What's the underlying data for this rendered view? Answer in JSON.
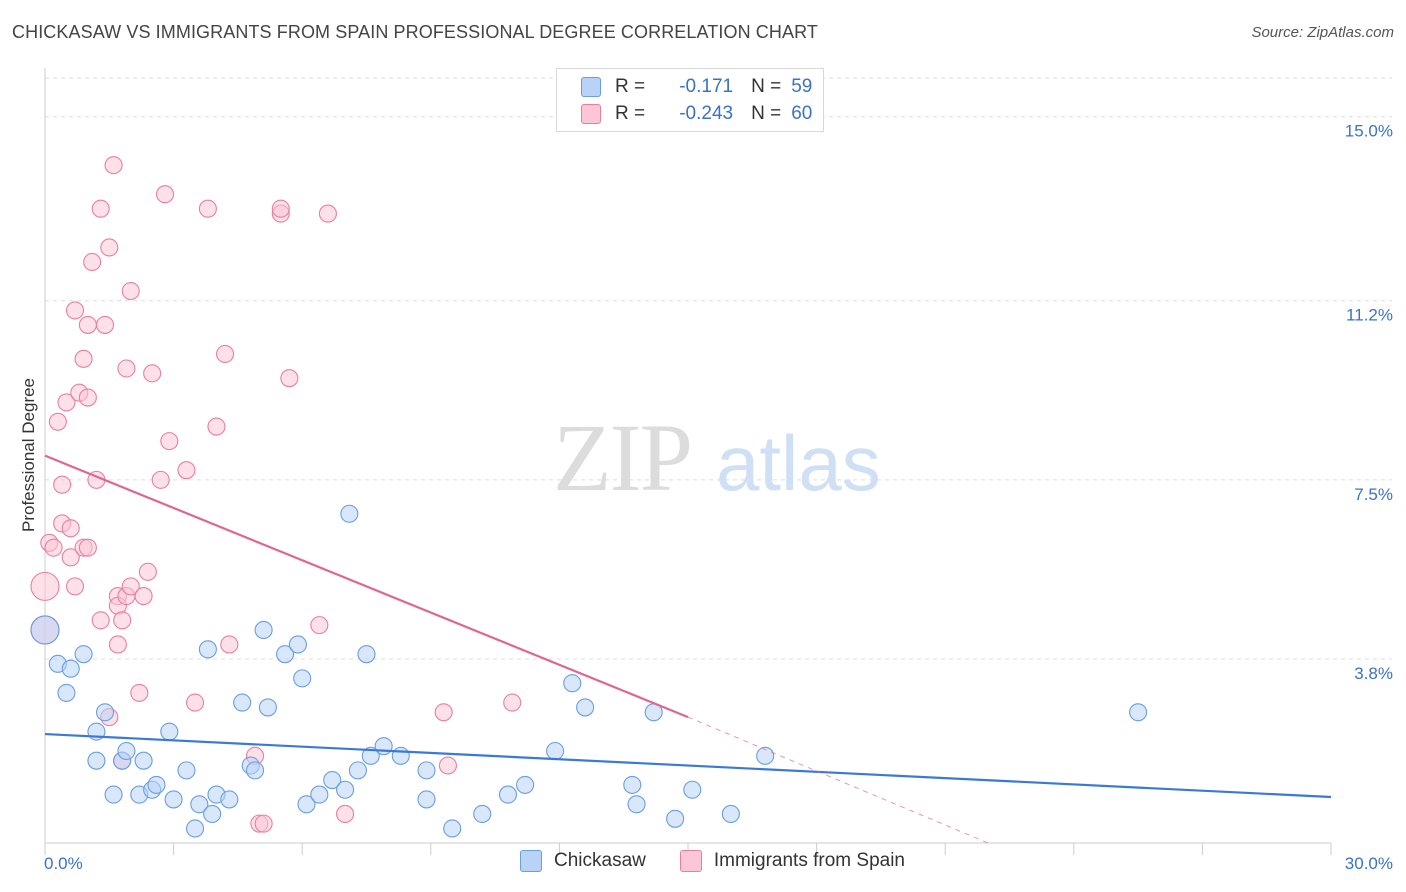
{
  "title": "CHICKASAW VS IMMIGRANTS FROM SPAIN PROFESSIONAL DEGREE CORRELATION CHART",
  "source": "Source: ZipAtlas.com",
  "watermark": {
    "zip": "ZIP",
    "atlas": "atlas"
  },
  "legend": {
    "r_label": "R =",
    "n_label": "N =",
    "rows": [
      {
        "r": "-0.171",
        "n": "59",
        "fill": "#b8d3f5",
        "stroke": "#6a9ee0"
      },
      {
        "r": "-0.243",
        "n": "60",
        "fill": "#fbc6d6",
        "stroke": "#e87fa0"
      }
    ]
  },
  "bottom_legend": {
    "series1": "Chickasaw",
    "series2": "Immigrants from Spain"
  },
  "chart_data": {
    "type": "scatter",
    "title": "CHICKASAW VS IMMIGRANTS FROM SPAIN PROFESSIONAL DEGREE CORRELATION CHART",
    "xlabel": "",
    "ylabel": "Professional Degree",
    "xlim": [
      0,
      30
    ],
    "ylim": [
      0,
      15.8
    ],
    "x_tick_labels": [
      "0.0%",
      "30.0%"
    ],
    "y_ticks": [
      3.8,
      7.5,
      11.2,
      15.0
    ],
    "y_tick_labels": [
      "3.8%",
      "7.5%",
      "11.2%",
      "15.0%"
    ],
    "colors": {
      "chickasaw": "#3a7ad6",
      "spain": "#e06692"
    },
    "series": [
      {
        "name": "Chickasaw",
        "color": "#6a9ee0",
        "fill": "#b8d3f5",
        "trend": {
          "x": [
            0,
            30
          ],
          "y": [
            2.25,
            0.95
          ]
        },
        "points": [
          [
            0.0,
            4.4
          ],
          [
            0.3,
            3.7
          ],
          [
            0.5,
            3.1
          ],
          [
            0.6,
            3.6
          ],
          [
            0.9,
            3.9
          ],
          [
            1.2,
            2.3
          ],
          [
            1.2,
            1.7
          ],
          [
            1.4,
            2.7
          ],
          [
            1.6,
            1.0
          ],
          [
            1.8,
            1.7
          ],
          [
            1.9,
            1.9
          ],
          [
            2.3,
            1.7
          ],
          [
            2.2,
            1.0
          ],
          [
            2.5,
            1.1
          ],
          [
            2.6,
            1.2
          ],
          [
            2.9,
            2.3
          ],
          [
            3.0,
            0.9
          ],
          [
            3.3,
            1.5
          ],
          [
            3.5,
            0.3
          ],
          [
            3.6,
            0.8
          ],
          [
            3.8,
            4.0
          ],
          [
            3.9,
            0.6
          ],
          [
            4.0,
            1.0
          ],
          [
            4.3,
            0.9
          ],
          [
            4.6,
            2.9
          ],
          [
            4.8,
            1.6
          ],
          [
            4.9,
            1.5
          ],
          [
            5.1,
            4.4
          ],
          [
            5.2,
            2.8
          ],
          [
            5.6,
            3.9
          ],
          [
            5.9,
            4.1
          ],
          [
            6.0,
            3.4
          ],
          [
            6.1,
            0.8
          ],
          [
            6.4,
            1.0
          ],
          [
            6.7,
            1.3
          ],
          [
            7.0,
            1.1
          ],
          [
            7.1,
            6.8
          ],
          [
            7.3,
            1.5
          ],
          [
            7.6,
            1.8
          ],
          [
            7.5,
            3.9
          ],
          [
            7.9,
            2.0
          ],
          [
            8.3,
            1.8
          ],
          [
            8.9,
            0.9
          ],
          [
            8.9,
            1.5
          ],
          [
            9.5,
            0.3
          ],
          [
            10.2,
            0.6
          ],
          [
            10.8,
            1.0
          ],
          [
            11.2,
            1.2
          ],
          [
            11.9,
            1.9
          ],
          [
            12.3,
            3.3
          ],
          [
            12.6,
            2.8
          ],
          [
            13.7,
            1.2
          ],
          [
            13.8,
            0.8
          ],
          [
            14.2,
            2.7
          ],
          [
            14.7,
            0.5
          ],
          [
            15.1,
            1.1
          ],
          [
            16.0,
            0.6
          ],
          [
            16.8,
            1.8
          ],
          [
            25.5,
            2.7
          ]
        ]
      },
      {
        "name": "Immigrants from Spain",
        "color": "#e87fa0",
        "fill": "#fbc6d6",
        "trend": {
          "x": [
            0,
            15.0
          ],
          "y": [
            8.0,
            2.6
          ]
        },
        "trend_dashed": {
          "x": [
            15.0,
            22.0
          ],
          "y": [
            2.6,
            0.0
          ]
        },
        "points": [
          [
            0.0,
            5.3
          ],
          [
            0.1,
            6.2
          ],
          [
            0.2,
            6.1
          ],
          [
            0.3,
            8.7
          ],
          [
            0.4,
            6.6
          ],
          [
            0.4,
            7.4
          ],
          [
            0.5,
            9.1
          ],
          [
            0.6,
            5.9
          ],
          [
            0.6,
            6.5
          ],
          [
            0.7,
            5.3
          ],
          [
            0.7,
            11.0
          ],
          [
            0.8,
            9.3
          ],
          [
            0.9,
            10.0
          ],
          [
            0.9,
            6.1
          ],
          [
            1.0,
            6.1
          ],
          [
            1.0,
            9.2
          ],
          [
            1.0,
            10.7
          ],
          [
            1.1,
            12.0
          ],
          [
            1.2,
            7.5
          ],
          [
            1.3,
            13.1
          ],
          [
            1.3,
            4.6
          ],
          [
            1.4,
            10.7
          ],
          [
            1.5,
            2.6
          ],
          [
            1.5,
            12.3
          ],
          [
            1.6,
            14.0
          ],
          [
            1.7,
            4.1
          ],
          [
            1.7,
            5.1
          ],
          [
            1.7,
            4.9
          ],
          [
            1.8,
            1.7
          ],
          [
            1.8,
            4.6
          ],
          [
            1.9,
            5.1
          ],
          [
            1.9,
            9.8
          ],
          [
            2.0,
            11.4
          ],
          [
            2.0,
            5.3
          ],
          [
            2.2,
            3.1
          ],
          [
            2.3,
            5.1
          ],
          [
            2.4,
            5.6
          ],
          [
            2.5,
            9.7
          ],
          [
            2.7,
            7.5
          ],
          [
            2.8,
            13.4
          ],
          [
            2.9,
            8.3
          ],
          [
            3.3,
            7.7
          ],
          [
            3.5,
            2.9
          ],
          [
            3.8,
            13.1
          ],
          [
            4.0,
            8.6
          ],
          [
            4.2,
            10.1
          ],
          [
            4.3,
            4.1
          ],
          [
            4.9,
            1.8
          ],
          [
            5.0,
            0.4
          ],
          [
            5.1,
            0.4
          ],
          [
            5.5,
            13.0
          ],
          [
            5.5,
            13.1
          ],
          [
            5.7,
            9.6
          ],
          [
            6.4,
            4.5
          ],
          [
            6.6,
            13.0
          ],
          [
            7.0,
            0.6
          ],
          [
            9.3,
            2.7
          ],
          [
            9.4,
            1.6
          ],
          [
            10.9,
            2.9
          ],
          [
            0.0,
            4.4
          ]
        ]
      }
    ]
  }
}
